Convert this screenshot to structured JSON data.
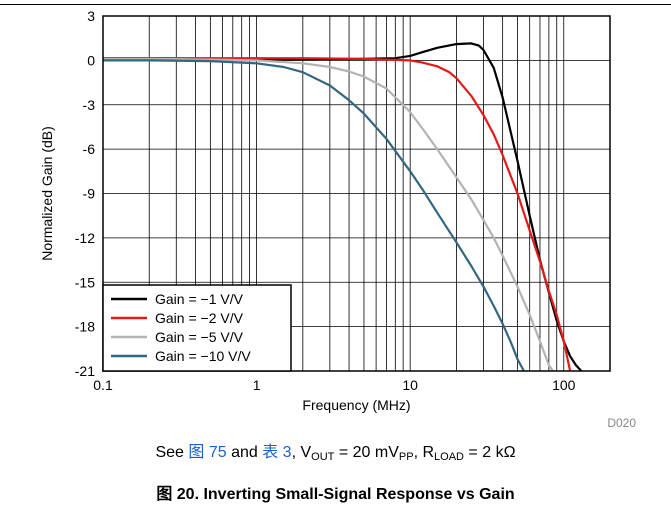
{
  "chart_data": {
    "type": "line",
    "xlabel": "Frequency (MHz)",
    "ylabel": "Normalized Gain (dB)",
    "x_scale": "log",
    "xlim": [
      0.1,
      200
    ],
    "ylim": [
      -21,
      3
    ],
    "x_ticks": [
      0.1,
      1,
      10,
      100
    ],
    "x_tick_labels": [
      "0.1",
      "1",
      "10",
      "100"
    ],
    "y_ticks": [
      3,
      0,
      -3,
      -6,
      -9,
      -12,
      -15,
      -18,
      -21
    ],
    "y_tick_labels": [
      "3",
      "0",
      "-3",
      "-6",
      "-9",
      "-12",
      "-15",
      "-18",
      "-21"
    ],
    "grid": true,
    "legend_position": "bottom-left",
    "id_label": "D020",
    "series": [
      {
        "name": "Gain = −1 V/V",
        "color": "#000000",
        "x": [
          0.1,
          0.2,
          0.5,
          1,
          2,
          5,
          8,
          10,
          12,
          15,
          20,
          25,
          28,
          30,
          35,
          40,
          50,
          60,
          70,
          80,
          90,
          100,
          110,
          120,
          130
        ],
        "y": [
          0.15,
          0.15,
          0.1,
          0.05,
          0.05,
          0.1,
          0.15,
          0.3,
          0.55,
          0.85,
          1.1,
          1.15,
          1.0,
          0.7,
          -0.5,
          -2.5,
          -6.8,
          -10.5,
          -13.5,
          -15.7,
          -17.6,
          -19.0,
          -20.0,
          -20.6,
          -21
        ]
      },
      {
        "name": "Gain = −2 V/V",
        "color": "#e21a1a",
        "x": [
          0.1,
          0.2,
          0.5,
          1,
          2,
          5,
          10,
          12,
          15,
          18,
          20,
          25,
          30,
          35,
          40,
          50,
          60,
          70,
          80,
          90,
          100,
          110
        ],
        "y": [
          0.15,
          0.15,
          0.15,
          0.15,
          0.15,
          0.1,
          0.0,
          -0.15,
          -0.4,
          -0.8,
          -1.2,
          -2.4,
          -3.7,
          -5.0,
          -6.4,
          -9.0,
          -11.5,
          -13.6,
          -15.6,
          -17.2,
          -19.0,
          -21
        ]
      },
      {
        "name": "Gain = −5 V/V",
        "color": "#b3b3b3",
        "x": [
          0.1,
          0.2,
          0.5,
          1,
          2,
          3,
          4,
          5,
          7,
          10,
          12,
          15,
          20,
          25,
          30,
          35,
          40,
          50,
          60,
          70,
          80,
          85
        ],
        "y": [
          0.1,
          0.1,
          0.05,
          0.0,
          -0.2,
          -0.45,
          -0.75,
          -1.1,
          -1.9,
          -3.5,
          -4.6,
          -6.0,
          -7.9,
          -9.4,
          -10.8,
          -12.0,
          -13.2,
          -15.3,
          -17.2,
          -19.0,
          -20.6,
          -21
        ]
      },
      {
        "name": "Gain = −10 V/V",
        "color": "#336680",
        "x": [
          0.1,
          0.2,
          0.5,
          1,
          1.5,
          2,
          3,
          4,
          5,
          7,
          10,
          12,
          15,
          20,
          25,
          30,
          35,
          40,
          45,
          50,
          55
        ],
        "y": [
          0.0,
          0.0,
          -0.05,
          -0.2,
          -0.45,
          -0.8,
          -1.7,
          -2.7,
          -3.6,
          -5.3,
          -7.5,
          -8.7,
          -10.3,
          -12.3,
          -13.9,
          -15.3,
          -16.6,
          -17.8,
          -19.0,
          -20.2,
          -21
        ]
      }
    ]
  },
  "caption": {
    "see_prefix": "See ",
    "fig_ref": "图 75",
    "and_text": " and ",
    "table_ref": "表 3",
    "vout_prefix": ", V",
    "vout_sub": "OUT",
    "vout_value": " = 20 mV",
    "vout_value_sub": "PP",
    "rload_prefix": ", R",
    "rload_sub": "LOAD",
    "rload_value": " = 2 kΩ"
  },
  "figure_title": "图 20. Inverting Small-Signal Response vs Gain"
}
